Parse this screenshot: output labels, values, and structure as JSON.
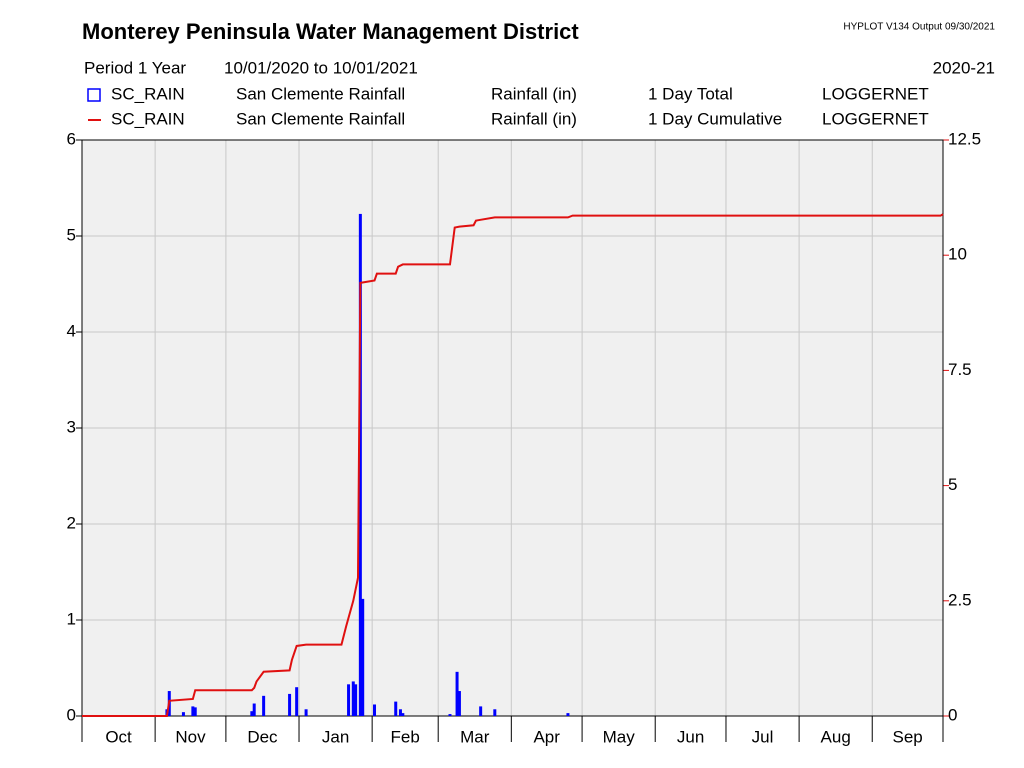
{
  "chart_data": {
    "type": "combo",
    "title": "Monterey Peninsula Water Management District",
    "program": "HYPLOT V134  Output 09/30/2021",
    "period": "Period 1 Year",
    "date_range": "10/01/2020  to  10/01/2021",
    "water_year": "2020-21",
    "categories": [
      "Oct",
      "Nov",
      "Dec",
      "Jan",
      "Feb",
      "Mar",
      "Apr",
      "May",
      "Jun",
      "Jul",
      "Aug",
      "Sep"
    ],
    "xlim": [
      0,
      365
    ],
    "xticks": [
      0,
      31,
      61,
      92,
      123,
      151,
      182,
      212,
      243,
      273,
      304,
      335,
      365
    ],
    "ylim": [
      0,
      6
    ],
    "yticks": [
      0,
      1,
      2,
      3,
      4,
      5,
      6
    ],
    "y2lim": [
      0,
      12.5
    ],
    "y2ticks": [
      0,
      2.5,
      5,
      7.5,
      10,
      12.5
    ],
    "grid": true,
    "series": [
      {
        "type": "bar",
        "name": "SC_RAIN",
        "label": "San Clemente Rainfall",
        "units": "Rainfall (in)",
        "interval": "1 Day Total",
        "source": "LOGGERNET",
        "color": "#0000ff",
        "x": [
          36,
          37,
          43,
          47,
          48,
          72,
          73,
          77,
          88,
          91,
          95,
          113,
          115,
          116,
          118,
          119,
          124,
          133,
          135,
          136,
          156,
          159,
          160,
          169,
          175,
          206
        ],
        "values": [
          0.07,
          0.26,
          0.04,
          0.1,
          0.09,
          0.05,
          0.13,
          0.21,
          0.23,
          0.3,
          0.07,
          0.33,
          0.36,
          0.33,
          5.23,
          1.22,
          0.12,
          0.15,
          0.07,
          0.03,
          0.02,
          0.46,
          0.26,
          0.1,
          0.07,
          0.03
        ]
      },
      {
        "type": "line",
        "axis": "y2",
        "name": "SC_RAIN",
        "label": "San Clemente Rainfall",
        "units": "Rainfall (in)",
        "interval": "1 Day Cumulative",
        "source": "LOGGERNET",
        "color": "#e01010",
        "x": [
          0,
          36,
          37,
          47,
          48,
          72,
          73,
          74,
          77,
          88,
          89,
          91,
          95,
          110,
          112,
          115,
          117,
          118,
          124,
          125,
          133,
          134,
          136,
          156,
          158,
          160,
          166,
          167,
          168,
          175,
          206,
          208,
          364,
          365
        ],
        "values": [
          0,
          0,
          0.33,
          0.37,
          0.56,
          0.56,
          0.61,
          0.75,
          0.96,
          0.99,
          1.22,
          1.52,
          1.55,
          1.55,
          1.95,
          2.5,
          3.0,
          9.4,
          9.45,
          9.6,
          9.6,
          9.75,
          9.8,
          9.8,
          10.6,
          10.62,
          10.65,
          10.75,
          10.76,
          10.82,
          10.82,
          10.86,
          10.86,
          10.89
        ]
      }
    ]
  }
}
